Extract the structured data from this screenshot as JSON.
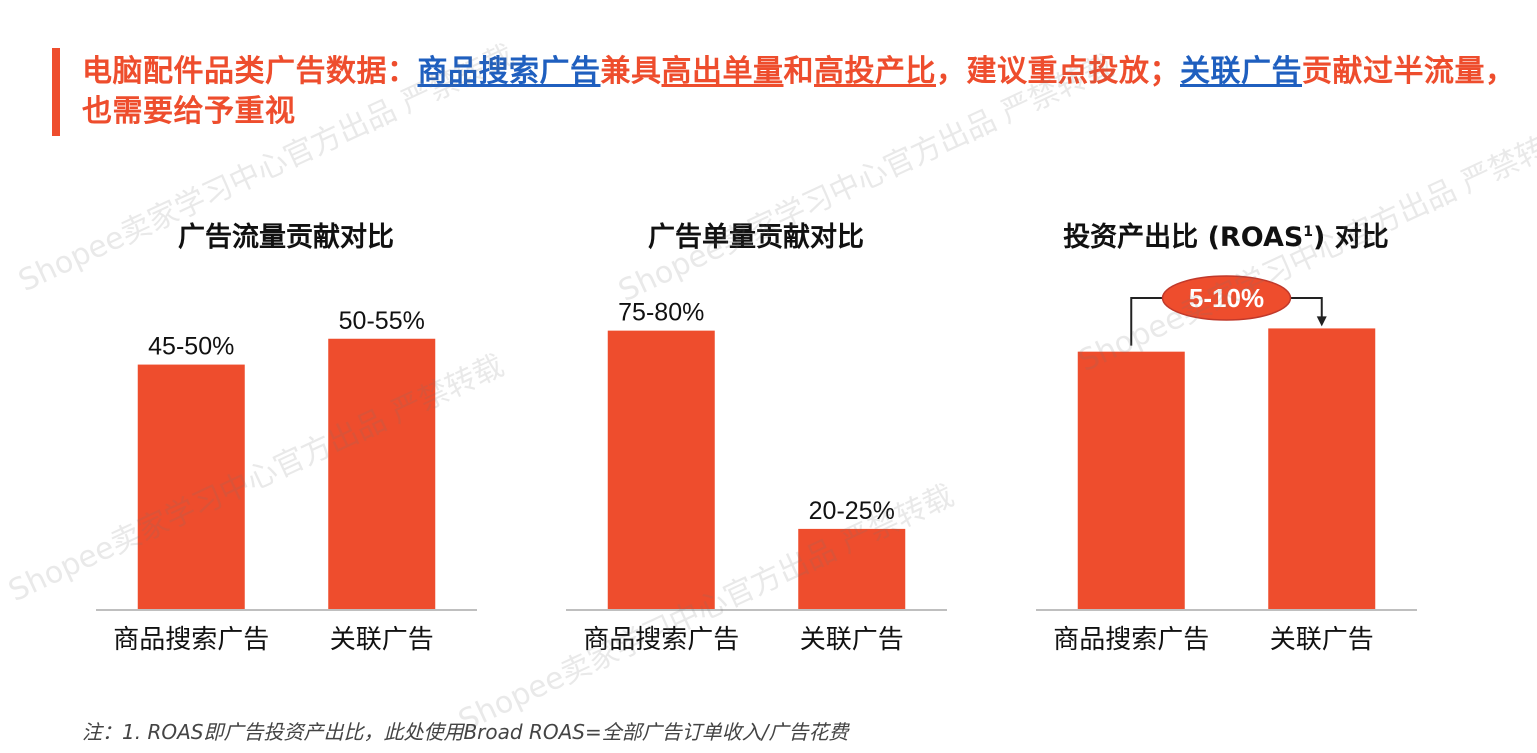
{
  "headline": {
    "p1": "电脑配件品类广告数据：",
    "p2": "商品搜索广告",
    "p3": "兼具",
    "p4": "高出单量",
    "p5": "和",
    "p6": "高投产比",
    "p7": "，建议重点投放；",
    "p8": "关联广告",
    "p9": "贡献过半流量，也需要给予重视"
  },
  "watermark": "Shopee卖家学习中心官方出品 严禁转载",
  "footnote": "注：1. ROAS即广告投资产出比，此处使用Broad ROAS=全部广告订单收入/广告花费",
  "colors": {
    "accent": "#ee4d2d",
    "highlight_blue": "#1f5fbf",
    "bar": "#ee4d2d"
  },
  "chart_data": [
    {
      "type": "bar",
      "title": "广告流量贡献对比",
      "categories": [
        "商品搜索广告",
        "关联广告"
      ],
      "values": [
        47.5,
        52.5
      ],
      "value_labels": [
        "45-50%",
        "50-55%"
      ],
      "ylim": [
        0,
        60
      ]
    },
    {
      "type": "bar",
      "title": "广告单量贡献对比",
      "categories": [
        "商品搜索广告",
        "关联广告"
      ],
      "values": [
        77.5,
        22.5
      ],
      "value_labels": [
        "75-80%",
        "20-25%"
      ],
      "ylim": [
        0,
        86
      ]
    },
    {
      "type": "bar",
      "title": "投资产出比 (ROAS",
      "title_sup": "1",
      "title_end": ") 对比",
      "categories": [
        "商品搜索广告",
        "关联广告"
      ],
      "values": [
        1.0,
        1.09
      ],
      "annotation": "5-10%",
      "ylim": [
        0,
        1.2
      ]
    }
  ]
}
